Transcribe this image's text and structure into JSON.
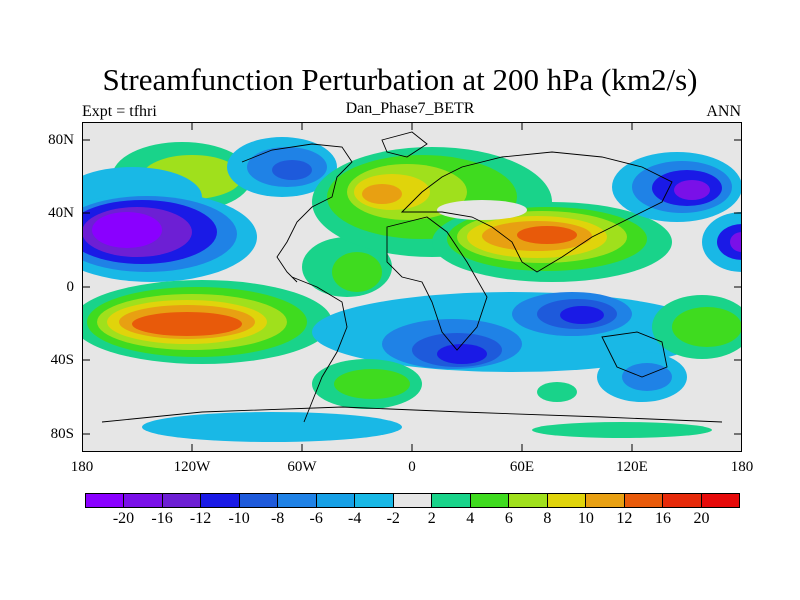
{
  "title": "Streamfunction Perturbation at 200 hPa (km2/s)",
  "left_label": "Expt = tfhri",
  "center_label": "Dan_Phase7_BETR",
  "right_label": "ANN",
  "lat_labels": [
    "80N",
    "40N",
    "0",
    "40S",
    "80S"
  ],
  "lon_labels": [
    "180",
    "120W",
    "60W",
    "0",
    "60E",
    "120E",
    "180"
  ],
  "colorbar": {
    "colors": [
      "#8a00ff",
      "#7a10e8",
      "#6d1fd4",
      "#1a1ae6",
      "#1e5adb",
      "#1f82e6",
      "#16a0e6",
      "#19b8e6",
      "#e6e6e6",
      "#19d38a",
      "#3fdb1f",
      "#a0e01c",
      "#e0d40b",
      "#e8a012",
      "#e85a0a",
      "#e62a0a",
      "#e60a0a"
    ],
    "labels": [
      "-20",
      "-16",
      "-12",
      "-10",
      "-8",
      "-6",
      "-4",
      "-2",
      "2",
      "4",
      "6",
      "8",
      "10",
      "12",
      "16",
      "20"
    ]
  },
  "map": {
    "background": "#e6e6e6",
    "regions": [
      {
        "id": "np-high-west",
        "color": "#19b8e6"
      },
      {
        "id": "na-low",
        "color": "#1f82e6"
      },
      {
        "id": "atlantic-euro-high",
        "color": "#3fdb1f"
      },
      {
        "id": "asia-high",
        "color": "#e8a012"
      },
      {
        "id": "np-low-east",
        "color": "#7a10e8"
      },
      {
        "id": "np-low-west",
        "color": "#7a10e8"
      },
      {
        "id": "sp-high",
        "color": "#e85a0a"
      },
      {
        "id": "io-low",
        "color": "#1a1ae6"
      },
      {
        "id": "sa-low",
        "color": "#1e5adb"
      }
    ]
  }
}
